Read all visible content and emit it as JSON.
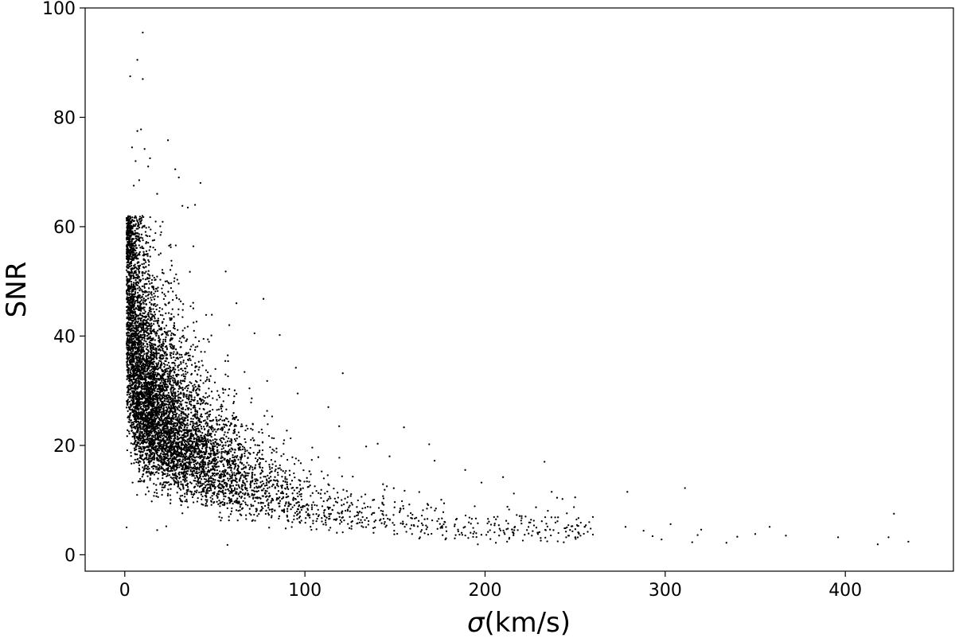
{
  "chart_data": {
    "type": "scatter",
    "title": "",
    "xlabel_symbol": "σ",
    "xlabel_units": "(km/s)",
    "ylabel": "SNR",
    "xlim": [
      -22,
      460
    ],
    "ylim": [
      -3,
      100
    ],
    "x_ticks": [
      0,
      100,
      200,
      300,
      400
    ],
    "y_ticks": [
      0,
      20,
      40,
      60,
      80,
      100
    ],
    "x_tick_labels": [
      "0",
      "100",
      "200",
      "300",
      "400"
    ],
    "y_tick_labels": [
      "0",
      "20",
      "40",
      "60",
      "80",
      "100"
    ],
    "grid": false,
    "legend": "none",
    "marker_color": "#000000",
    "points": [
      [
        10,
        95.5
      ],
      [
        3,
        87.5
      ],
      [
        10,
        87
      ],
      [
        7,
        90.5
      ],
      [
        7,
        77.5
      ],
      [
        9,
        77.8
      ],
      [
        24,
        75.8
      ],
      [
        4,
        74.5
      ],
      [
        6,
        72
      ],
      [
        13,
        71
      ],
      [
        28,
        70.5
      ],
      [
        30,
        69
      ],
      [
        18,
        66
      ],
      [
        32,
        63.8
      ],
      [
        35,
        63.5
      ],
      [
        42,
        68
      ],
      [
        14,
        72.5
      ],
      [
        8,
        68.5
      ],
      [
        5,
        67.5
      ],
      [
        11,
        74.2
      ],
      [
        39,
        64
      ],
      [
        1,
        5
      ],
      [
        57,
        1.8
      ],
      [
        18,
        4.5
      ],
      [
        23,
        5.2
      ],
      [
        56,
        51.8
      ],
      [
        62,
        46
      ],
      [
        77,
        46.8
      ],
      [
        86,
        40.2
      ],
      [
        121,
        33.2
      ],
      [
        113,
        27
      ],
      [
        119,
        23.5
      ],
      [
        95,
        34.2
      ],
      [
        96,
        29.5
      ],
      [
        72,
        40.5
      ],
      [
        58,
        42
      ],
      [
        155,
        23.3
      ],
      [
        169,
        20.2
      ],
      [
        172,
        17.2
      ],
      [
        134,
        19.8
      ],
      [
        147,
        18
      ],
      [
        189,
        15.5
      ],
      [
        198,
        13.2
      ],
      [
        210,
        14.2
      ],
      [
        216,
        11.2
      ],
      [
        233,
        17
      ],
      [
        237,
        11.5
      ],
      [
        243,
        10.2
      ],
      [
        250,
        10.5
      ],
      [
        256,
        5.4
      ],
      [
        257,
        4.2
      ],
      [
        248,
        5.2
      ],
      [
        245,
        3.2
      ],
      [
        238,
        4.5
      ],
      [
        226,
        3.5
      ],
      [
        221,
        2.6
      ],
      [
        206,
        2.2
      ],
      [
        196,
        1.9
      ],
      [
        194,
        4.2
      ],
      [
        185,
        4.6
      ],
      [
        178,
        2.8
      ],
      [
        279,
        11.5
      ],
      [
        311,
        12.2
      ],
      [
        278,
        5.1
      ],
      [
        288,
        4.4
      ],
      [
        293,
        3.4
      ],
      [
        298,
        2.8
      ],
      [
        303,
        5.6
      ],
      [
        315,
        2.3
      ],
      [
        320,
        4.6
      ],
      [
        318,
        3.6
      ],
      [
        334,
        2.2
      ],
      [
        340,
        3.3
      ],
      [
        350,
        3.8
      ],
      [
        358,
        5.1
      ],
      [
        367,
        3.5
      ],
      [
        396,
        3.2
      ],
      [
        418,
        1.9
      ],
      [
        424,
        3.2
      ],
      [
        427,
        7.5
      ],
      [
        435,
        2.4
      ]
    ],
    "generated_cloud": {
      "count": 7200,
      "x_scale": 28,
      "y_peak": 31,
      "y_decay": 60,
      "y_floor": 7,
      "spread": 0.32
    }
  }
}
